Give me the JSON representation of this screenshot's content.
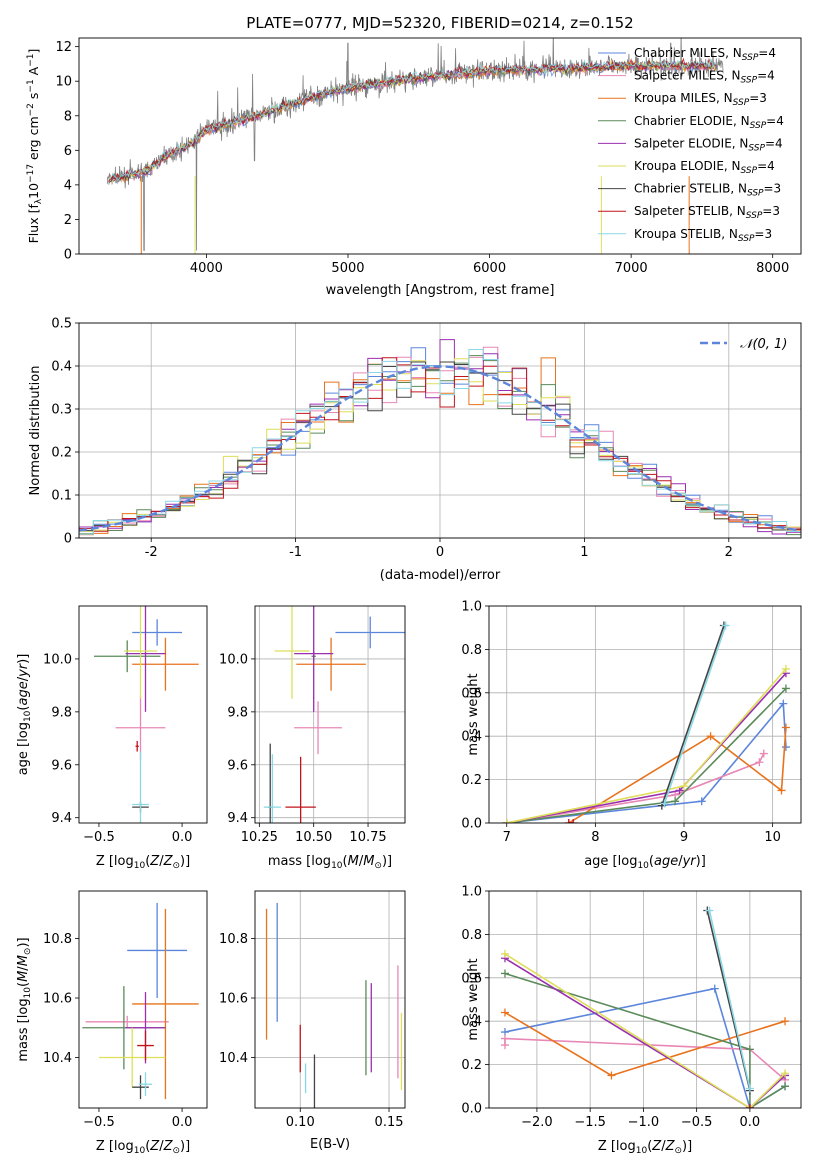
{
  "colors": {
    "Chabrier MILES": "#5b86dc",
    "Salpeter MILES": "#e887b5",
    "Kroupa MILES": "#e8731c",
    "Chabrier ELODIE": "#5a8a5a",
    "Salpeter ELODIE": "#9a2fb0",
    "Kroupa ELODIE": "#dede5a",
    "Chabrier STELIB": "#444444",
    "Salpeter STELIB": "#c0141c",
    "Kroupa STELIB": "#8ad8e6",
    "data": "#808080",
    "gaussian": "#5b86dc"
  },
  "chart_data": [
    {
      "id": "spectrum",
      "type": "line",
      "title": "PLATE=0777, MJD=52320, FIBERID=0214, z=0.152",
      "xlabel": "wavelength [Angstrom, rest frame]",
      "ylabel": "Flux [fλ10⁻¹⁷ erg cm⁻² s⁻¹ A⁻¹]",
      "xlim": [
        3100,
        8200
      ],
      "ylim": [
        0,
        12.5
      ],
      "xticks": [
        4000,
        5000,
        6000,
        7000,
        8000
      ],
      "yticks": [
        0,
        2,
        4,
        6,
        8,
        10,
        12
      ],
      "grid": false,
      "legend": "top-right",
      "data_wavelength_range": [
        3300,
        7650
      ],
      "series": [
        {
          "name": "Chabrier MILES, N$_{SSP}$=4",
          "label_main": "Chabrier MILES, N",
          "label_tail": "=4"
        },
        {
          "name": "Salpeter MILES, N$_{SSP}$=4",
          "label_main": "Salpeter MILES, N",
          "label_tail": "=4"
        },
        {
          "name": "Kroupa MILES, N$_{SSP}$=3",
          "label_main": "Kroupa MILES, N",
          "label_tail": "=3"
        },
        {
          "name": "Chabrier ELODIE, N$_{SSP}$=4",
          "label_main": "Chabrier ELODIE, N",
          "label_tail": "=4"
        },
        {
          "name": "Salpeter ELODIE, N$_{SSP}$=4",
          "label_main": "Salpeter ELODIE, N",
          "label_tail": "=4"
        },
        {
          "name": "Kroupa ELODIE, N$_{SSP}$=4",
          "label_main": "Kroupa ELODIE, N",
          "label_tail": "=4"
        },
        {
          "name": "Chabrier STELIB, N$_{SSP}$=3",
          "label_main": "Chabrier STELIB, N",
          "label_tail": "=3"
        },
        {
          "name": "Salpeter STELIB, N$_{SSP}$=3",
          "label_main": "Salpeter STELIB, N",
          "label_tail": "=3"
        },
        {
          "name": "Kroupa STELIB, N$_{SSP}$=3",
          "label_main": "Kroupa STELIB, N",
          "label_tail": "=3"
        }
      ],
      "legend_subscript": "SSP",
      "continuum": [
        [
          3300,
          4.3
        ],
        [
          3500,
          4.6
        ],
        [
          3600,
          4.9
        ],
        [
          3700,
          5.6
        ],
        [
          3800,
          6.0
        ],
        [
          3900,
          6.4
        ],
        [
          4000,
          7.2
        ],
        [
          4200,
          7.6
        ],
        [
          4500,
          8.4
        ],
        [
          4800,
          9.2
        ],
        [
          5000,
          9.6
        ],
        [
          5500,
          10.2
        ],
        [
          6000,
          10.6
        ],
        [
          6500,
          10.7
        ],
        [
          7000,
          10.9
        ],
        [
          7600,
          10.9
        ]
      ]
    },
    {
      "id": "residuals",
      "type": "bar",
      "xlabel": "(data-model)/error",
      "ylabel": "Normed distribution",
      "xlim": [
        -2.5,
        2.5
      ],
      "ylim": [
        0,
        0.5
      ],
      "xticks": [
        -2,
        -1,
        0,
        1,
        2
      ],
      "yticks": [
        0.0,
        0.1,
        0.2,
        0.3,
        0.4,
        0.5
      ],
      "grid": true,
      "legend": "top-right",
      "gaussian_label": "𝒩(0, 1)",
      "bin_width": 0.1
    },
    {
      "id": "age_vs_Z",
      "type": "scatter",
      "xlabel": "Z [log₁₀(Z/Z⊙)]",
      "ylabel": "age  [log₁₀(age/yr)]",
      "xlim": [
        -0.62,
        0.15
      ],
      "ylim": [
        9.38,
        10.2
      ],
      "xticks": [
        -0.5,
        0.0
      ],
      "xticklabels": [
        "−0.5",
        "0.0"
      ],
      "yticks": [
        9.4,
        9.6,
        9.8,
        10.0
      ],
      "yticklabels": [
        "9.4",
        "9.6",
        "9.8",
        "10.0"
      ],
      "grid": false,
      "points": [
        {
          "model": "Chabrier MILES",
          "x": -0.15,
          "xerr": 0.15,
          "y": 10.1,
          "yerr": 0.05
        },
        {
          "model": "Salpeter MILES",
          "x": -0.25,
          "xerr": 0.15,
          "y": 9.74,
          "yerr": 0.12
        },
        {
          "model": "Kroupa MILES",
          "x": -0.1,
          "xerr": 0.2,
          "y": 9.98,
          "yerr": 0.1
        },
        {
          "model": "Chabrier ELODIE",
          "x": -0.33,
          "xerr": 0.2,
          "y": 10.01,
          "yerr": 0.06
        },
        {
          "model": "Salpeter ELODIE",
          "x": -0.22,
          "xerr": 0.12,
          "y": 10.02,
          "yerr": 0.22
        },
        {
          "model": "Kroupa ELODIE",
          "x": -0.25,
          "xerr": 0.1,
          "y": 10.03,
          "yerr": 0.18
        },
        {
          "model": "Chabrier STELIB",
          "x": -0.25,
          "xerr": 0.05,
          "y": 9.44,
          "yerr": 0.02
        },
        {
          "model": "Salpeter STELIB",
          "x": -0.27,
          "xerr": 0.01,
          "y": 9.67,
          "yerr": 0.02
        },
        {
          "model": "Kroupa STELIB",
          "x": -0.25,
          "xerr": 0.05,
          "y": 9.45,
          "yerr": 0.2
        }
      ]
    },
    {
      "id": "age_vs_mass",
      "type": "scatter",
      "xlabel": "mass [log₁₀(M/M⊙)]",
      "ylabel": "",
      "xlim": [
        10.23,
        10.92
      ],
      "ylim": [
        9.38,
        10.2
      ],
      "xticks": [
        10.25,
        10.5,
        10.75
      ],
      "xticklabels": [
        "10.25",
        "10.50",
        "10.75"
      ],
      "yticks": [
        9.4,
        9.6,
        9.8,
        10.0
      ],
      "yticklabels": [
        "9.4",
        "9.6",
        "9.8",
        "10.0"
      ],
      "grid": true,
      "points": [
        {
          "model": "Chabrier MILES",
          "x": 10.76,
          "xerr": 0.16,
          "y": 10.1,
          "yerr": 0.06
        },
        {
          "model": "Salpeter MILES",
          "x": 10.52,
          "xerr": 0.11,
          "y": 9.74,
          "yerr": 0.1
        },
        {
          "model": "Kroupa MILES",
          "x": 10.58,
          "xerr": 0.16,
          "y": 9.98,
          "yerr": 0.1
        },
        {
          "model": "Chabrier ELODIE",
          "x": 10.5,
          "xerr": 0.01,
          "y": 10.01,
          "yerr": 0.02
        },
        {
          "model": "Salpeter ELODIE",
          "x": 10.5,
          "xerr": 0.09,
          "y": 10.02,
          "yerr": 0.22
        },
        {
          "model": "Kroupa ELODIE",
          "x": 10.4,
          "xerr": 0.08,
          "y": 10.03,
          "yerr": 0.18
        },
        {
          "model": "Chabrier STELIB",
          "x": 10.3,
          "xerr": 0.01,
          "y": 9.44,
          "yerr": 0.24
        },
        {
          "model": "Salpeter STELIB",
          "x": 10.44,
          "xerr": 0.07,
          "y": 9.44,
          "yerr": 0.19
        },
        {
          "model": "Kroupa STELIB",
          "x": 10.31,
          "xerr": 0.04,
          "y": 9.44,
          "yerr": 0.2
        }
      ]
    },
    {
      "id": "mass_vs_Z",
      "type": "scatter",
      "xlabel": "Z [log₁₀(Z/Z⊙)]",
      "ylabel": "mass [log₁₀(M/M⊙)]",
      "xlim": [
        -0.62,
        0.15
      ],
      "ylim": [
        10.23,
        10.96
      ],
      "xticks": [
        -0.5,
        0.0
      ],
      "xticklabels": [
        "−0.5",
        "0.0"
      ],
      "yticks": [
        10.4,
        10.6,
        10.8
      ],
      "yticklabels": [
        "10.4",
        "10.6",
        "10.8"
      ],
      "grid": false,
      "points": [
        {
          "model": "Chabrier MILES",
          "x": -0.15,
          "xerr": 0.18,
          "y": 10.76,
          "yerr": 0.16
        },
        {
          "model": "Salpeter MILES",
          "x": -0.33,
          "xerr": 0.25,
          "y": 10.52,
          "yerr": 0.02
        },
        {
          "model": "Kroupa MILES",
          "x": -0.1,
          "xerr": 0.2,
          "y": 10.58,
          "yerr": 0.32
        },
        {
          "model": "Chabrier ELODIE",
          "x": -0.35,
          "xerr": 0.25,
          "y": 10.5,
          "yerr": 0.14
        },
        {
          "model": "Salpeter ELODIE",
          "x": -0.22,
          "xerr": 0.12,
          "y": 10.5,
          "yerr": 0.12
        },
        {
          "model": "Kroupa ELODIE",
          "x": -0.3,
          "xerr": 0.2,
          "y": 10.4,
          "yerr": 0.1
        },
        {
          "model": "Chabrier STELIB",
          "x": -0.25,
          "xerr": 0.05,
          "y": 10.3,
          "yerr": 0.04
        },
        {
          "model": "Salpeter STELIB",
          "x": -0.22,
          "xerr": 0.05,
          "y": 10.44,
          "yerr": 0.05
        },
        {
          "model": "Kroupa STELIB",
          "x": -0.22,
          "xerr": 0.04,
          "y": 10.31,
          "yerr": 0.04
        }
      ]
    },
    {
      "id": "mass_vs_ebv",
      "type": "scatter",
      "xlabel": "E(B-V)",
      "ylabel": "",
      "xlim": [
        0.0745,
        0.159
      ],
      "ylim": [
        10.23,
        10.96
      ],
      "xticks": [
        0.1,
        0.15
      ],
      "xticklabels": [
        "0.10",
        "0.15"
      ],
      "yticks": [
        10.4,
        10.6,
        10.8
      ],
      "yticklabels": [
        "10.4",
        "10.6",
        "10.8"
      ],
      "grid": true,
      "points": [
        {
          "model": "Chabrier MILES",
          "x": 0.087,
          "y": 10.72,
          "yerr": 0.2
        },
        {
          "model": "Salpeter MILES",
          "x": 0.155,
          "y": 10.52,
          "yerr": 0.19
        },
        {
          "model": "Kroupa MILES",
          "x": 0.081,
          "y": 10.68,
          "yerr": 0.22
        },
        {
          "model": "Chabrier ELODIE",
          "x": 0.137,
          "y": 10.5,
          "yerr": 0.16
        },
        {
          "model": "Salpeter ELODIE",
          "x": 0.14,
          "y": 10.5,
          "yerr": 0.15
        },
        {
          "model": "Kroupa ELODIE",
          "x": 0.157,
          "y": 10.42,
          "yerr": 0.13
        },
        {
          "model": "Chabrier STELIB",
          "x": 0.108,
          "y": 10.32,
          "yerr": 0.09
        },
        {
          "model": "Salpeter STELIB",
          "x": 0.1,
          "y": 10.43,
          "yerr": 0.08
        },
        {
          "model": "Kroupa STELIB",
          "x": 0.103,
          "y": 10.33,
          "yerr": 0.05
        }
      ]
    },
    {
      "id": "weight_vs_age",
      "type": "line",
      "xlabel": "age  [log₁₀(age/yr)]",
      "ylabel": "mass weight",
      "xlim": [
        6.8,
        10.32
      ],
      "ylim": [
        0,
        1.0
      ],
      "xticks": [
        7,
        8,
        9,
        10
      ],
      "xticklabels": [
        "7",
        "8",
        "9",
        "10"
      ],
      "yticks": [
        0.0,
        0.2,
        0.4,
        0.6,
        0.8,
        1.0
      ],
      "yticklabels": [
        "0.0",
        "0.2",
        "0.4",
        "0.6",
        "0.8",
        "1.0"
      ],
      "grid": true,
      "series": [
        {
          "model": "Chabrier MILES",
          "x": [
            7.0,
            8.75,
            9.2,
            10.12,
            10.15
          ],
          "y": [
            0.0,
            0.08,
            0.1,
            0.55,
            0.35
          ]
        },
        {
          "model": "Salpeter MILES",
          "x": [
            7.0,
            8.9,
            9.85,
            9.9
          ],
          "y": [
            0.0,
            0.13,
            0.28,
            0.32
          ]
        },
        {
          "model": "Kroupa MILES",
          "x": [
            7.7,
            9.3,
            10.1,
            10.15
          ],
          "y": [
            0.0,
            0.4,
            0.15,
            0.44
          ]
        },
        {
          "model": "Chabrier ELODIE",
          "x": [
            7.0,
            8.9,
            10.15
          ],
          "y": [
            0.0,
            0.1,
            0.62
          ]
        },
        {
          "model": "Salpeter ELODIE",
          "x": [
            7.0,
            8.95,
            10.15
          ],
          "y": [
            0.0,
            0.15,
            0.69
          ]
        },
        {
          "model": "Kroupa ELODIE",
          "x": [
            7.0,
            9.0,
            10.15
          ],
          "y": [
            0.0,
            0.17,
            0.71
          ]
        },
        {
          "model": "Chabrier STELIB",
          "x": [
            8.75,
            9.45
          ],
          "y": [
            0.08,
            0.91
          ]
        },
        {
          "model": "Salpeter STELIB",
          "x": [
            7.7,
            7.75
          ],
          "y": [
            0.0,
            0.0
          ]
        },
        {
          "model": "Kroupa STELIB",
          "x": [
            8.78,
            9.47
          ],
          "y": [
            0.09,
            0.91
          ]
        }
      ]
    },
    {
      "id": "weight_vs_Z",
      "type": "line",
      "xlabel": "Z [log₁₀(Z/Z⊙)]",
      "ylabel": "mass weight",
      "xlim": [
        -2.45,
        0.48
      ],
      "ylim": [
        0,
        1.0
      ],
      "xticks": [
        -2.0,
        -1.5,
        -1.0,
        -0.5,
        0.0
      ],
      "xticklabels": [
        "−2.0",
        "−1.5",
        "−1.0",
        "−0.5",
        "0.0"
      ],
      "yticks": [
        0.0,
        0.2,
        0.4,
        0.6,
        0.8,
        1.0
      ],
      "yticklabels": [
        "0.0",
        "0.2",
        "0.4",
        "0.6",
        "0.8",
        "1.0"
      ],
      "grid": true,
      "series": [
        {
          "model": "Chabrier MILES",
          "x": [
            -2.3,
            -0.33,
            0.0,
            0.33
          ],
          "y": [
            0.35,
            0.55,
            0.0,
            0.1
          ]
        },
        {
          "model": "Salpeter MILES",
          "x": [
            -2.3,
            -2.3,
            0.0,
            0.33
          ],
          "y": [
            0.29,
            0.32,
            0.27,
            0.13
          ]
        },
        {
          "model": "Kroupa MILES",
          "x": [
            -2.3,
            -1.3,
            0.33
          ],
          "y": [
            0.44,
            0.15,
            0.4
          ]
        },
        {
          "model": "Chabrier ELODIE",
          "x": [
            -2.3,
            0.0,
            0.0,
            0.33
          ],
          "y": [
            0.62,
            0.27,
            0.0,
            0.1
          ]
        },
        {
          "model": "Salpeter ELODIE",
          "x": [
            -2.3,
            0.0,
            0.33
          ],
          "y": [
            0.69,
            0.0,
            0.15
          ]
        },
        {
          "model": "Kroupa ELODIE",
          "x": [
            -2.3,
            0.0,
            0.33
          ],
          "y": [
            0.71,
            0.0,
            0.16
          ]
        },
        {
          "model": "Chabrier STELIB",
          "x": [
            -0.4,
            0.0
          ],
          "y": [
            0.91,
            0.08
          ]
        },
        {
          "model": "Salpeter STELIB",
          "x": [
            0.0,
            0.0
          ],
          "y": [
            0.0,
            0.0
          ]
        },
        {
          "model": "Kroupa STELIB",
          "x": [
            -0.38,
            0.0
          ],
          "y": [
            0.91,
            0.09
          ]
        }
      ]
    }
  ]
}
